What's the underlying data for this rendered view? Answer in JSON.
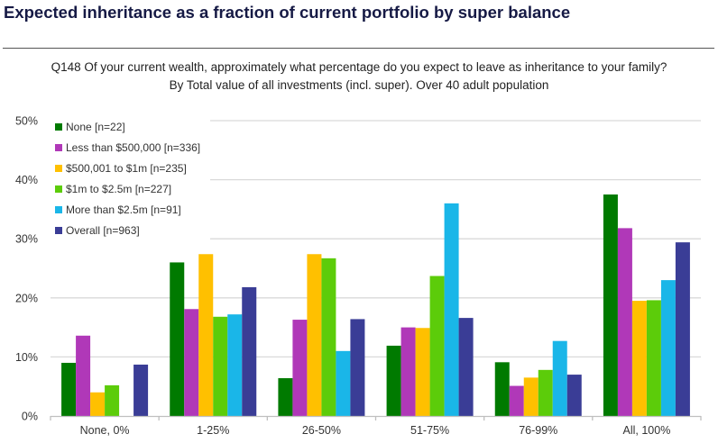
{
  "header": {
    "title": "Expected inheritance as a fraction of current portfolio by super balance",
    "subtitle_line1": "Q148 Of your current wealth, approximately what percentage do you expect to leave as inheritance to your family?",
    "subtitle_line2": "By Total value of all investments (incl. super). Over 40 adult population"
  },
  "chart_data": {
    "type": "bar",
    "title": "Expected inheritance as a fraction of current portfolio by super balance",
    "xlabel": "",
    "ylabel": "",
    "ylim": [
      0,
      50
    ],
    "yticks": [
      0,
      10,
      20,
      30,
      40,
      50
    ],
    "ytick_labels": [
      "0%",
      "10%",
      "20%",
      "30%",
      "40%",
      "50%"
    ],
    "grid": true,
    "legend_position": "top-left",
    "categories": [
      "None, 0%",
      "1-25%",
      "26-50%",
      "51-75%",
      "76-99%",
      "All, 100%"
    ],
    "series": [
      {
        "name": "None [n=22]",
        "color": "#007a00",
        "values": [
          9.0,
          26.0,
          6.4,
          11.9,
          9.1,
          37.5
        ]
      },
      {
        "name": "Less than $500,000 [n=336]",
        "color": "#b038b8",
        "values": [
          13.6,
          18.1,
          16.3,
          15.0,
          5.1,
          31.8
        ]
      },
      {
        "name": "$500,001 to $1m [n=235]",
        "color": "#ffc000",
        "values": [
          4.0,
          27.4,
          27.4,
          14.9,
          6.5,
          19.5
        ]
      },
      {
        "name": "$1m to $2.5m [n=227]",
        "color": "#5ccc0a",
        "values": [
          5.2,
          16.8,
          26.7,
          23.7,
          7.8,
          19.6
        ]
      },
      {
        "name": "More than $2.5m [n=91]",
        "color": "#1ab6e8",
        "values": [
          0,
          17.2,
          11.0,
          36.0,
          12.7,
          23.0
        ]
      },
      {
        "name": "Overall [n=963]",
        "color": "#3a3d96",
        "values": [
          8.7,
          21.8,
          16.4,
          16.6,
          7.0,
          29.4
        ]
      }
    ]
  }
}
